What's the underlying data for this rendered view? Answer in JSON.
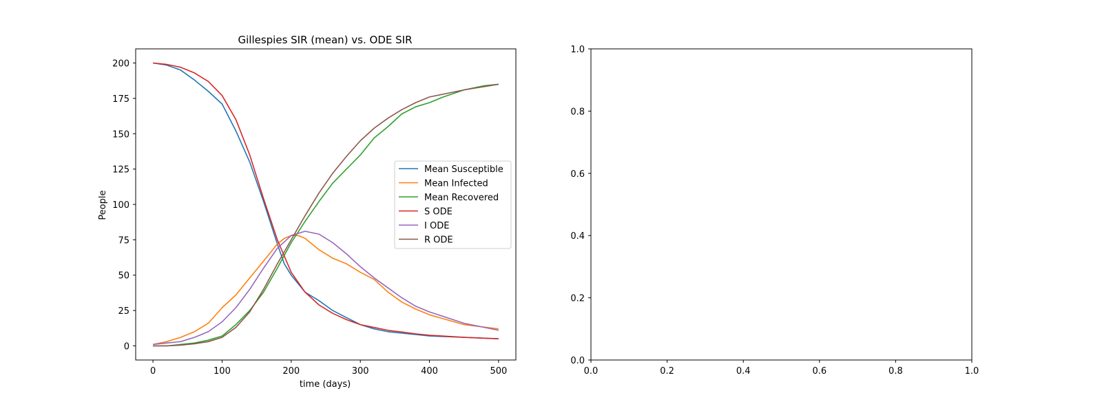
{
  "colors": {
    "mean_susceptible": "#1f77b4",
    "mean_infected": "#ff7f0e",
    "mean_recovered": "#2ca02c",
    "s_ode": "#d62728",
    "i_ode": "#9467bd",
    "r_ode": "#8c564b"
  },
  "chart_data": [
    {
      "type": "line",
      "title": "Gillespies SIR (mean) vs. ODE SIR",
      "xlabel": "time (days)",
      "ylabel": "People",
      "xlim": [
        -25,
        525
      ],
      "ylim": [
        -10,
        210
      ],
      "xticks": [
        0,
        100,
        200,
        300,
        400,
        500
      ],
      "yticks": [
        0,
        25,
        50,
        75,
        100,
        125,
        150,
        175,
        200
      ],
      "legend": "center-right",
      "grid": false,
      "series": [
        {
          "name": "Mean Susceptible",
          "color": "#1f77b4",
          "x": [
            0,
            20,
            40,
            60,
            80,
            100,
            120,
            140,
            160,
            180,
            190,
            200,
            210,
            220,
            240,
            260,
            280,
            300,
            320,
            340,
            360,
            380,
            400,
            450,
            500
          ],
          "y": [
            200,
            198.5,
            195,
            188,
            180,
            171,
            152,
            130,
            102,
            72,
            58,
            50,
            44,
            38,
            32,
            25,
            20,
            15,
            12,
            10,
            9,
            8,
            7,
            6,
            5
          ]
        },
        {
          "name": "Mean Infected",
          "color": "#ff7f0e",
          "x": [
            0,
            20,
            40,
            60,
            80,
            100,
            120,
            140,
            160,
            180,
            190,
            200,
            210,
            220,
            240,
            260,
            280,
            300,
            320,
            340,
            360,
            380,
            400,
            450,
            500
          ],
          "y": [
            1,
            3,
            6,
            10,
            16,
            27,
            36,
            48,
            60,
            72,
            76,
            78,
            78,
            76,
            68,
            62,
            58,
            52,
            47,
            38,
            31,
            26,
            22,
            15,
            12
          ]
        },
        {
          "name": "Mean Recovered",
          "color": "#2ca02c",
          "x": [
            0,
            20,
            40,
            60,
            80,
            100,
            120,
            140,
            160,
            180,
            200,
            220,
            240,
            260,
            280,
            300,
            320,
            340,
            360,
            380,
            400,
            420,
            450,
            480,
            500
          ],
          "y": [
            0,
            0,
            1,
            2,
            4,
            7,
            15,
            25,
            38,
            55,
            73,
            88,
            102,
            115,
            125,
            135,
            147,
            155,
            164,
            169,
            172,
            176,
            181,
            184,
            185
          ]
        },
        {
          "name": "S ODE",
          "color": "#d62728",
          "x": [
            0,
            20,
            40,
            60,
            80,
            100,
            120,
            140,
            160,
            180,
            200,
            220,
            240,
            260,
            280,
            300,
            320,
            340,
            360,
            380,
            400,
            450,
            500
          ],
          "y": [
            200,
            199,
            197,
            193,
            187,
            177,
            160,
            135,
            104,
            75,
            52,
            38,
            29,
            23,
            18.5,
            15,
            13,
            11,
            9.8,
            8.5,
            7.5,
            6,
            5
          ]
        },
        {
          "name": "I ODE",
          "color": "#9467bd",
          "x": [
            0,
            20,
            40,
            60,
            80,
            100,
            120,
            140,
            160,
            180,
            200,
            220,
            240,
            260,
            280,
            300,
            320,
            340,
            360,
            380,
            400,
            450,
            500
          ],
          "y": [
            1,
            2,
            3,
            6,
            10,
            17,
            27,
            40,
            55,
            69,
            78,
            81,
            79,
            73,
            65,
            56,
            48,
            41,
            34,
            28,
            24,
            16,
            11
          ]
        },
        {
          "name": "R ODE",
          "color": "#8c564b",
          "x": [
            0,
            20,
            40,
            60,
            80,
            100,
            120,
            140,
            160,
            180,
            200,
            220,
            240,
            260,
            280,
            300,
            320,
            340,
            360,
            380,
            400,
            450,
            500
          ],
          "y": [
            0,
            0,
            0.5,
            1.5,
            3,
            6,
            13,
            24,
            40,
            58,
            75,
            92,
            108,
            122,
            134,
            145,
            154,
            161,
            167,
            172,
            176,
            181,
            185
          ]
        }
      ]
    },
    {
      "type": "line",
      "title": "",
      "xlabel": "",
      "ylabel": "",
      "xlim": [
        0,
        1
      ],
      "ylim": [
        0,
        1
      ],
      "xticks": [
        0.0,
        0.2,
        0.4,
        0.6,
        0.8,
        1.0
      ],
      "yticks": [
        0.0,
        0.2,
        0.4,
        0.6,
        0.8,
        1.0
      ],
      "series": []
    }
  ]
}
